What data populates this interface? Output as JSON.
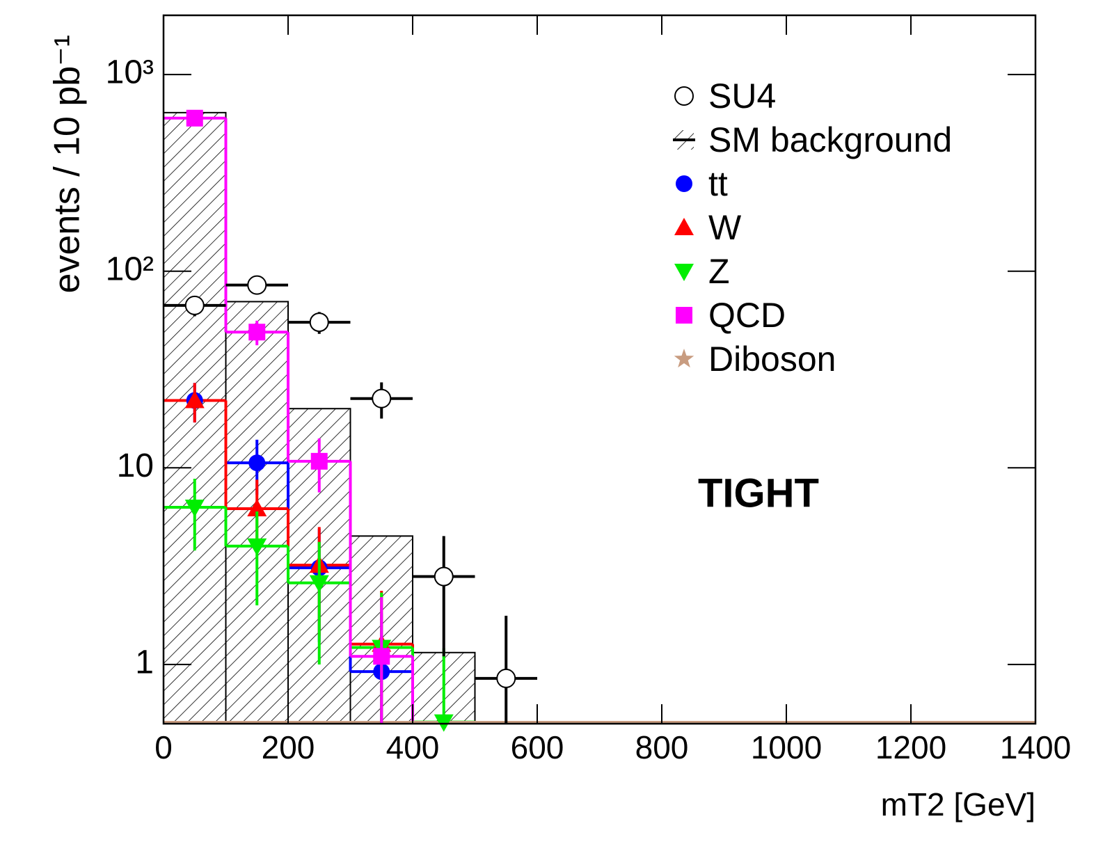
{
  "chart_data": {
    "type": "histogram",
    "xlabel": "mT2 [GeV]",
    "ylabel": "events / 10 pb⁻¹",
    "annotation": "TIGHT",
    "ylog": true,
    "bins": [
      0,
      100,
      200,
      300,
      400,
      500,
      600,
      700,
      800,
      900,
      1000,
      1100,
      1200,
      1300,
      1400
    ],
    "xlim": [
      0,
      1400
    ],
    "ylim": [
      0.5,
      2000
    ],
    "xticks": [
      0,
      200,
      400,
      600,
      800,
      1000,
      1200,
      1400
    ],
    "yticks": [
      1,
      10,
      {
        "value": 100,
        "label": "10²"
      },
      {
        "value": 1000,
        "label": "10³"
      }
    ],
    "legend": "upper right",
    "series": [
      {
        "name": "SM background",
        "style": "hatched",
        "color": "#000000",
        "values": [
          640,
          70,
          20,
          4.5,
          1.15,
          0,
          0,
          0,
          0,
          0,
          0,
          0,
          0,
          0
        ]
      },
      {
        "name": "tt",
        "style": "step",
        "marker": "circle",
        "color": "#0000ff",
        "values": [
          22,
          10.6,
          3.1,
          0.92,
          0,
          0,
          0,
          0,
          0,
          0,
          0,
          0,
          0,
          0
        ],
        "errors": [
          5,
          3.3,
          1.8,
          0.9,
          0,
          0,
          0,
          0,
          0,
          0,
          0,
          0,
          0,
          0
        ]
      },
      {
        "name": "W",
        "style": "step",
        "marker": "triangle-up",
        "color": "#ff0000",
        "values": [
          22,
          6.2,
          3.2,
          1.27,
          0,
          0,
          0,
          0,
          0,
          0,
          0,
          0,
          0,
          0
        ],
        "errors": [
          5,
          2.5,
          1.8,
          1.1,
          0,
          0,
          0,
          0,
          0,
          0,
          0,
          0,
          0,
          0
        ]
      },
      {
        "name": "Z",
        "style": "step",
        "marker": "triangle-down",
        "color": "#00ee00",
        "values": [
          6.3,
          4.0,
          2.6,
          1.22,
          0.51,
          0,
          0,
          0,
          0,
          0,
          0,
          0,
          0,
          0
        ],
        "errors": [
          2.5,
          2,
          1.6,
          1.1,
          0.7,
          0,
          0,
          0,
          0,
          0,
          0,
          0,
          0,
          0
        ]
      },
      {
        "name": "QCD",
        "style": "step",
        "marker": "square",
        "color": "#ff00ff",
        "values": [
          600,
          49,
          10.8,
          1.1,
          0,
          0,
          0,
          0,
          0,
          0,
          0,
          0,
          0,
          0
        ],
        "errors": [
          25,
          7,
          3.3,
          1.1,
          0,
          0,
          0,
          0,
          0,
          0,
          0,
          0,
          0,
          0
        ]
      },
      {
        "name": "Diboson",
        "style": "step",
        "marker": "star",
        "color": "#c89c80",
        "values": [
          0,
          0,
          0,
          0,
          0,
          0,
          0,
          0,
          0,
          0,
          0,
          0,
          0,
          0
        ],
        "errors": [
          0,
          0,
          0,
          0,
          0,
          0,
          0,
          0,
          0,
          0,
          0,
          0,
          0,
          0
        ]
      },
      {
        "name": "SU4",
        "style": "points",
        "marker": "open-circle",
        "color": "#000000",
        "values": [
          67,
          85,
          55,
          22.5,
          2.8,
          0.85,
          0,
          0,
          0,
          0,
          0,
          0,
          0,
          0
        ],
        "errors": [
          8,
          9,
          7,
          4.7,
          1.7,
          0.92,
          0,
          0,
          0,
          0,
          0,
          0,
          0,
          0
        ]
      }
    ]
  }
}
